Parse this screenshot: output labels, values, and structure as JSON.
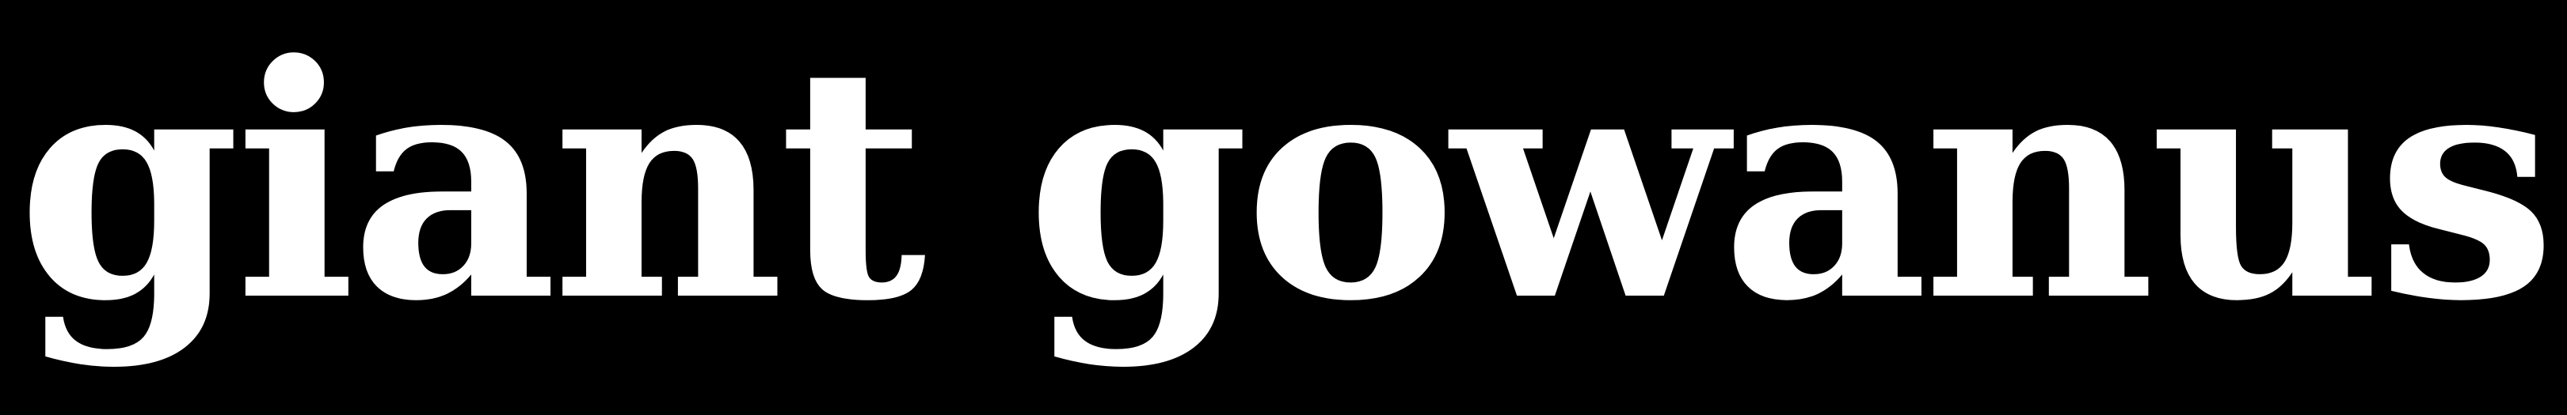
{
  "logo": {
    "text": "giant gowanus",
    "text_color": "#ffffff",
    "background_color": "#000000"
  }
}
